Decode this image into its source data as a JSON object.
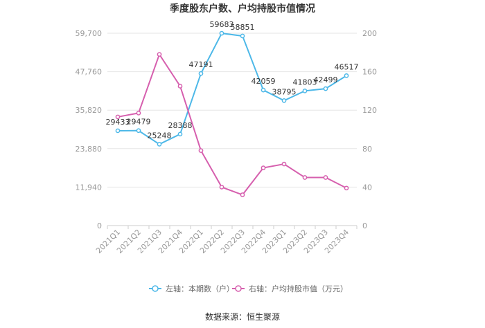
{
  "chart_data": {
    "type": "line",
    "title": "季度股东户数、户均持股市值情况",
    "categories": [
      "2021Q1",
      "2021Q2",
      "2021Q3",
      "2021Q4",
      "2022Q1",
      "2022Q2",
      "2022Q3",
      "2022Q4",
      "2023Q1",
      "2023Q2",
      "2023Q3",
      "2023Q4"
    ],
    "y_left": {
      "ticks": [
        "0",
        "11,940",
        "23,880",
        "35,820",
        "47,760",
        "59,700"
      ],
      "range": [
        0,
        59700
      ]
    },
    "y_right": {
      "ticks": [
        "0",
        "40",
        "80",
        "120",
        "160",
        "200"
      ],
      "range": [
        0,
        200
      ]
    },
    "series": [
      {
        "name": "左轴：本期数（户）",
        "axis": "left",
        "color": "#4db8e8",
        "values": [
          29433,
          29479,
          25248,
          28388,
          47191,
          59683,
          58851,
          42059,
          38795,
          41803,
          42499,
          46517
        ],
        "labels": [
          "29433",
          "29479",
          "25248",
          "28388",
          "47191",
          "59683",
          "58851",
          "42059",
          "38795",
          "41803",
          "42499",
          "46517"
        ]
      },
      {
        "name": "右轴：户均持股市值（万元）",
        "axis": "right",
        "color": "#d65fae",
        "values": [
          113,
          117,
          178,
          145,
          78,
          40,
          32,
          60,
          64,
          50,
          50,
          39
        ]
      }
    ],
    "grid": true,
    "legend_position": "bottom"
  },
  "source": "数据来源：恒生聚源"
}
